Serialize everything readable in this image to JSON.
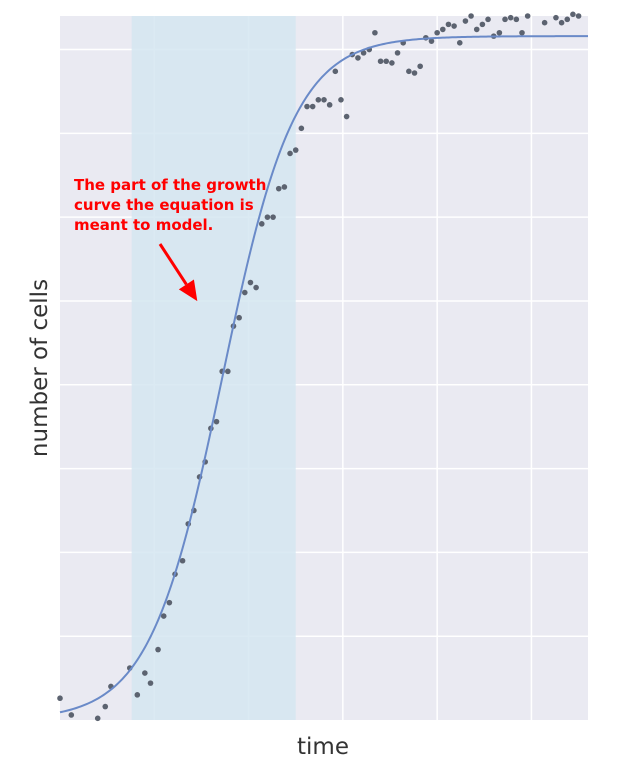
{
  "chart_data": {
    "type": "scatter",
    "xlabel": "time",
    "ylabel": "number of cells",
    "xlim": [
      0,
      28
    ],
    "ylim": [
      0,
      420
    ],
    "grid": true,
    "tick_labels_shown": false,
    "colors": {
      "background": "#eaeaf2",
      "grid": "#ffffff",
      "shaded_region": "#d5e6f1",
      "curve": "#6a8ac8",
      "points": "#5c6370",
      "annotation": "#ff0000"
    },
    "shaded_region": {
      "x_start": 3.8,
      "x_end": 12.5
    },
    "fit_curve": {
      "model": "logistic",
      "capacity": 408,
      "growth_rate": 0.52,
      "midpoint": 8.6
    },
    "series": [
      {
        "x": [
          0.0,
          0.6,
          2.0,
          2.4,
          2.7,
          3.7,
          4.1,
          4.5,
          4.8,
          5.2,
          5.5,
          5.8,
          6.1,
          6.5,
          6.8,
          7.1,
          7.4,
          7.7,
          8.0,
          8.3,
          8.6,
          8.9,
          9.2,
          9.5,
          9.8,
          10.1,
          10.4,
          10.7,
          11.0,
          11.3,
          11.6,
          11.9,
          12.2,
          12.5,
          12.8,
          13.1,
          13.4,
          13.7,
          14.0,
          14.3,
          14.6,
          14.9,
          15.2,
          15.5,
          15.8,
          16.1,
          16.4,
          16.7,
          17.0,
          17.3,
          17.6,
          17.9,
          18.2,
          18.5,
          18.8,
          19.1,
          19.4,
          19.7,
          20.0,
          20.3,
          20.6,
          20.9,
          21.2,
          21.5,
          21.8,
          22.1,
          22.4,
          22.7,
          23.0,
          23.3,
          23.6,
          23.9,
          24.2,
          24.5,
          24.8,
          25.1,
          25.4,
          25.7,
          26.0,
          26.3,
          26.6,
          26.9,
          27.2,
          27.5
        ],
        "y": [
          13,
          3,
          1,
          8,
          20,
          31,
          15,
          28,
          22,
          42,
          62,
          70,
          87,
          95,
          117,
          125,
          145,
          154,
          174,
          178,
          208,
          208,
          235,
          240,
          255,
          261,
          258,
          296,
          300,
          300,
          317,
          318,
          338,
          340,
          353,
          366,
          366,
          370,
          370,
          367,
          387,
          370,
          360,
          397,
          395,
          398,
          400,
          410,
          393,
          393,
          392,
          398,
          404,
          387,
          386,
          390,
          407,
          405,
          410,
          412,
          415,
          414,
          404,
          417,
          420,
          412,
          415,
          418,
          408,
          410,
          418,
          419,
          418,
          410,
          420,
          426,
          422,
          416,
          423,
          419,
          416,
          418,
          421,
          420
        ]
      }
    ],
    "annotations": [
      {
        "lines": [
          "The part of the growth",
          "curve the equation is",
          "meant to model."
        ],
        "points_to": {
          "x": 7.6,
          "y": 226
        }
      }
    ]
  }
}
